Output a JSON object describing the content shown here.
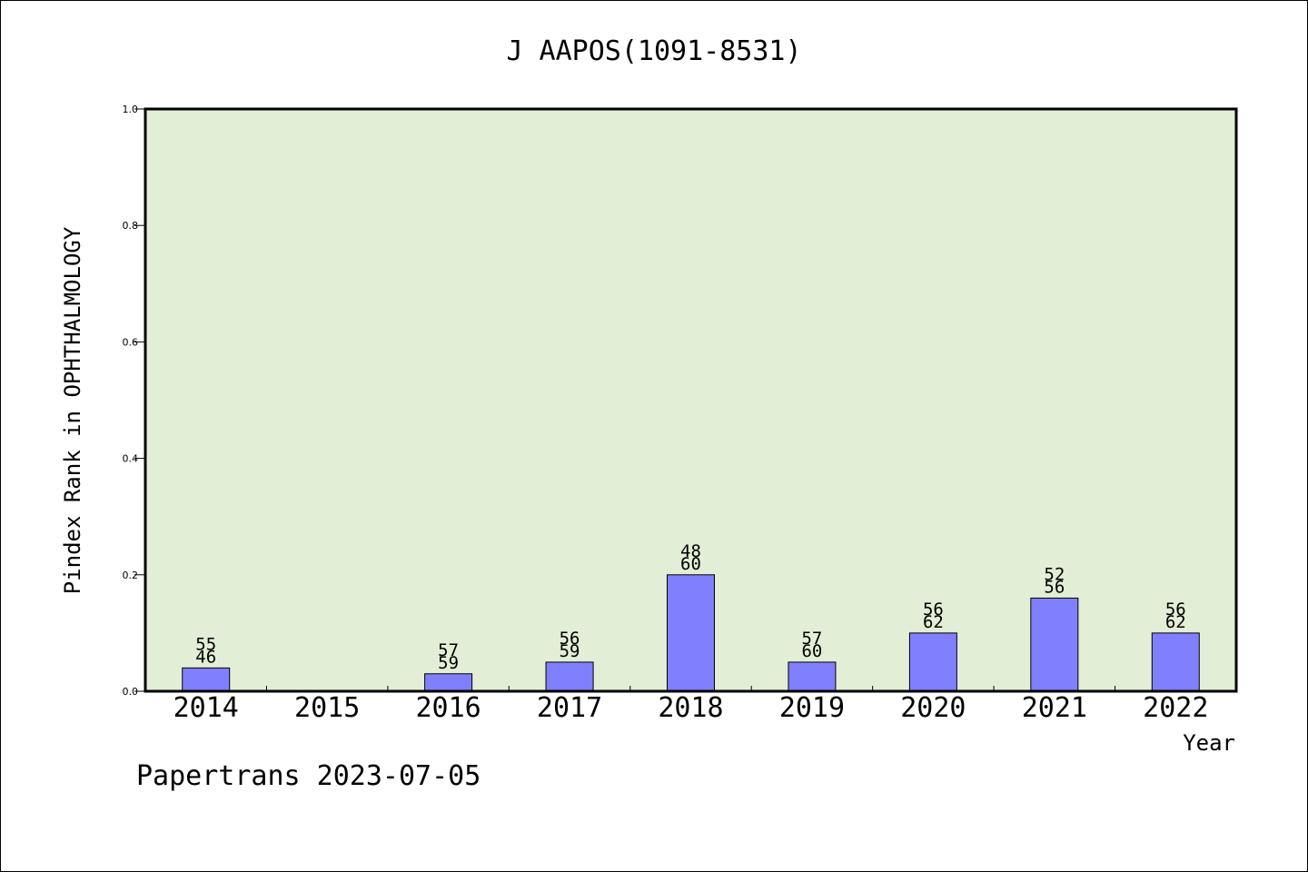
{
  "chart_data": {
    "type": "bar",
    "title": "J AAPOS(1091-8531)",
    "xlabel": "Year",
    "ylabel": "Pindex Rank in OPHTHALMOLOGY",
    "categories": [
      "2014",
      "2015",
      "2016",
      "2017",
      "2018",
      "2019",
      "2020",
      "2021",
      "2022"
    ],
    "values": [
      0.04,
      null,
      0.03,
      0.05,
      0.2,
      0.05,
      0.1,
      0.16,
      0.1
    ],
    "label_top": [
      "55",
      "",
      "57",
      "56",
      "48",
      "57",
      "56",
      "52",
      "56"
    ],
    "label_bottom": [
      "46",
      "",
      "59",
      "59",
      "60",
      "60",
      "62",
      "56",
      "62"
    ],
    "ylim": [
      0,
      1.0
    ],
    "yticks": [
      "0.0",
      "0.2",
      "0.4",
      "0.6",
      "0.8",
      "1.0"
    ],
    "grid": false,
    "colors": {
      "plot_background": "#e2efd6",
      "bar_fill": "#8080ff",
      "bar_stroke": "#000000"
    }
  },
  "footer": {
    "source": "Papertrans 2023-07-05"
  }
}
